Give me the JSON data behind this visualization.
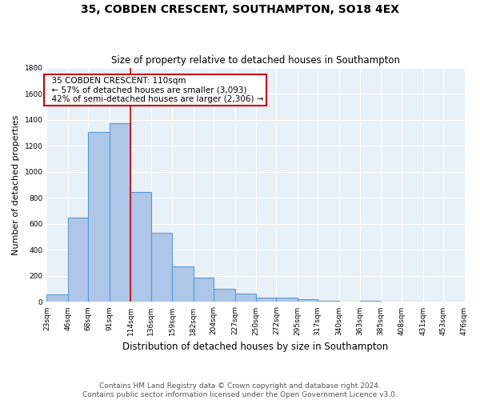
{
  "title1": "35, COBDEN CRESCENT, SOUTHAMPTON, SO18 4EX",
  "title2": "Size of property relative to detached houses in Southampton",
  "xlabel": "Distribution of detached houses by size in Southampton",
  "ylabel": "Number of detached properties",
  "footnote1": "Contains HM Land Registry data © Crown copyright and database right 2024.",
  "footnote2": "Contains public sector information licensed under the Open Government Licence v3.0.",
  "annotation_title": "35 COBDEN CRESCENT: 110sqm",
  "annotation_line1": "← 57% of detached houses are smaller (3,093)",
  "annotation_line2": "42% of semi-detached houses are larger (2,306) →",
  "vline_x": 114,
  "bar_edges": [
    23,
    46,
    68,
    91,
    114,
    136,
    159,
    182,
    204,
    227,
    250,
    272,
    295,
    317,
    340,
    363,
    385,
    408,
    431,
    453,
    476
  ],
  "bar_heights": [
    55,
    645,
    1307,
    1374,
    845,
    530,
    275,
    185,
    103,
    65,
    35,
    33,
    22,
    10,
    0,
    10,
    0,
    0,
    0,
    0
  ],
  "bar_color": "#aec6e8",
  "bar_edge_color": "#5b9bd5",
  "vline_color": "#cc0000",
  "annotation_box_color": "#cc0000",
  "background_color": "#e8f0f8",
  "grid_color": "#ffffff",
  "ylim": [
    0,
    1800
  ],
  "yticks": [
    0,
    200,
    400,
    600,
    800,
    1000,
    1200,
    1400,
    1600,
    1800
  ],
  "xtick_labels": [
    "23sqm",
    "46sqm",
    "68sqm",
    "91sqm",
    "114sqm",
    "136sqm",
    "159sqm",
    "182sqm",
    "204sqm",
    "227sqm",
    "250sqm",
    "272sqm",
    "295sqm",
    "317sqm",
    "340sqm",
    "363sqm",
    "385sqm",
    "408sqm",
    "431sqm",
    "453sqm",
    "476sqm"
  ],
  "title1_fontsize": 10,
  "title2_fontsize": 8.5,
  "xlabel_fontsize": 8.5,
  "ylabel_fontsize": 8.0,
  "footnote_fontsize": 6.5,
  "annotation_fontsize": 7.5,
  "tick_fontsize": 6.5
}
